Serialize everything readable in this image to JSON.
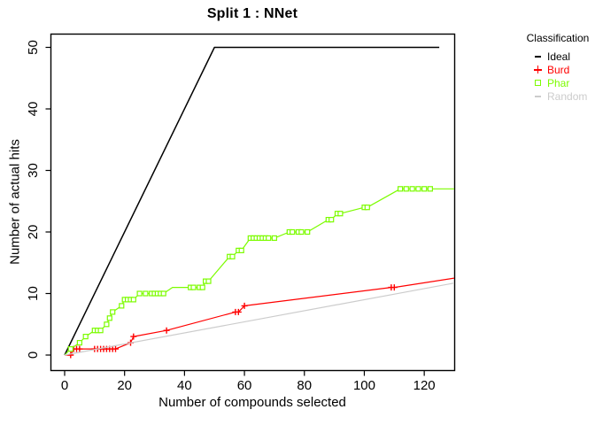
{
  "title": "Split 1 : NNet",
  "x_axis_label": "Number of compounds selected",
  "y_axis_label": "Number of actual hits",
  "legend": {
    "title": "Classification",
    "items": [
      {
        "label": "Ideal",
        "color": "#000000",
        "symbol": "dash"
      },
      {
        "label": "Burd",
        "color": "#ff0000",
        "symbol": "plus"
      },
      {
        "label": "Phar",
        "color": "#7cfc00",
        "symbol": "square"
      },
      {
        "label": "Random",
        "color": "#cccccc",
        "symbol": "dash"
      }
    ]
  },
  "chart_data": {
    "type": "line",
    "title": "Split 1 : NNet",
    "xlabel": "Number of compounds selected",
    "ylabel": "Number of actual hits",
    "xlim": [
      0,
      130
    ],
    "ylim": [
      0,
      50
    ],
    "x_ticks": [
      0,
      20,
      40,
      60,
      80,
      100,
      120
    ],
    "y_ticks": [
      0,
      10,
      20,
      30,
      40,
      50
    ],
    "grid": false,
    "legend_position": "right",
    "legend_title": "Classification",
    "series": [
      {
        "name": "Ideal",
        "color": "#000000",
        "marker": "none",
        "line_width": 1.5,
        "points": [
          [
            0,
            0,
            0
          ],
          [
            50,
            50,
            0
          ],
          [
            125,
            50,
            0
          ]
        ]
      },
      {
        "name": "Burd",
        "color": "#ff0000",
        "marker": "plus",
        "line_width": 1.2,
        "points": [
          [
            0,
            0,
            0
          ],
          [
            2,
            0,
            1
          ],
          [
            3,
            1,
            1
          ],
          [
            4,
            1,
            1
          ],
          [
            5,
            1,
            1
          ],
          [
            10,
            1,
            1
          ],
          [
            11,
            1,
            1
          ],
          [
            12,
            1,
            1
          ],
          [
            13,
            1,
            1
          ],
          [
            14,
            1,
            1
          ],
          [
            15,
            1,
            1
          ],
          [
            16,
            1,
            1
          ],
          [
            17,
            1,
            1
          ],
          [
            22,
            2,
            1
          ],
          [
            23,
            3,
            1
          ],
          [
            34,
            4,
            1
          ],
          [
            57,
            7,
            1
          ],
          [
            58,
            7,
            1
          ],
          [
            60,
            8,
            1
          ],
          [
            109,
            11,
            1
          ],
          [
            110,
            11,
            1
          ],
          [
            130,
            12.5,
            0
          ]
        ]
      },
      {
        "name": "Phar",
        "color": "#7cfc00",
        "marker": "square",
        "line_width": 1.2,
        "points": [
          [
            0,
            0,
            0
          ],
          [
            2,
            1,
            1
          ],
          [
            5,
            2,
            1
          ],
          [
            7,
            3,
            1
          ],
          [
            10,
            4,
            1
          ],
          [
            11,
            4,
            1
          ],
          [
            12,
            4,
            1
          ],
          [
            14,
            5,
            1
          ],
          [
            15,
            6,
            1
          ],
          [
            16,
            7,
            1
          ],
          [
            19,
            8,
            1
          ],
          [
            20,
            9,
            1
          ],
          [
            21,
            9,
            1
          ],
          [
            22,
            9,
            1
          ],
          [
            23,
            9,
            1
          ],
          [
            25,
            10,
            1
          ],
          [
            27,
            10,
            1
          ],
          [
            29,
            10,
            1
          ],
          [
            30,
            10,
            1
          ],
          [
            31,
            10,
            1
          ],
          [
            32,
            10,
            1
          ],
          [
            33,
            10,
            1
          ],
          [
            36,
            11,
            0
          ],
          [
            42,
            11,
            1
          ],
          [
            43,
            11,
            1
          ],
          [
            45,
            11,
            1
          ],
          [
            46,
            11,
            1
          ],
          [
            47,
            12,
            1
          ],
          [
            48,
            12,
            1
          ],
          [
            55,
            16,
            1
          ],
          [
            56,
            16,
            1
          ],
          [
            58,
            17,
            1
          ],
          [
            59,
            17,
            1
          ],
          [
            62,
            19,
            1
          ],
          [
            63,
            19,
            1
          ],
          [
            64,
            19,
            1
          ],
          [
            65,
            19,
            1
          ],
          [
            66,
            19,
            1
          ],
          [
            67,
            19,
            1
          ],
          [
            68,
            19,
            1
          ],
          [
            70,
            19,
            1
          ],
          [
            75,
            20,
            1
          ],
          [
            76,
            20,
            1
          ],
          [
            78,
            20,
            1
          ],
          [
            79,
            20,
            1
          ],
          [
            81,
            20,
            1
          ],
          [
            88,
            22,
            1
          ],
          [
            89,
            22,
            1
          ],
          [
            91,
            23,
            1
          ],
          [
            92,
            23,
            1
          ],
          [
            100,
            24,
            1
          ],
          [
            101,
            24,
            1
          ],
          [
            112,
            27,
            1
          ],
          [
            114,
            27,
            1
          ],
          [
            116,
            27,
            1
          ],
          [
            118,
            27,
            1
          ],
          [
            120,
            27,
            1
          ],
          [
            122,
            27,
            1
          ],
          [
            130,
            27,
            0
          ]
        ]
      },
      {
        "name": "Random",
        "color": "#cccccc",
        "marker": "none",
        "line_width": 1.2,
        "points": [
          [
            0,
            0,
            0
          ],
          [
            130,
            11.7,
            0
          ]
        ]
      }
    ]
  }
}
